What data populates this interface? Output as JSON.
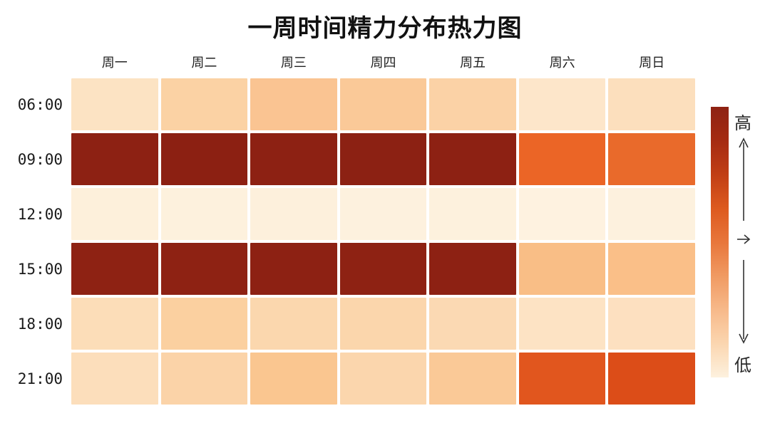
{
  "chart": {
    "title": "一周时间精力分布热力图"
  },
  "legend": {
    "high_label": "高",
    "low_label": "低",
    "arrow_icon": "vertical-range-arrows-icon"
  },
  "chart_data": {
    "type": "heatmap",
    "title": "一周时间精力分布热力图",
    "xlabel": "",
    "ylabel": "",
    "categories": [
      "周一",
      "周二",
      "周三",
      "周四",
      "周五",
      "周六",
      "周日"
    ],
    "rows": [
      "06:00",
      "09:00",
      "12:00",
      "15:00",
      "18:00",
      "21:00"
    ],
    "values": [
      [
        25,
        35,
        45,
        42,
        35,
        18,
        28
      ],
      [
        95,
        95,
        95,
        95,
        95,
        72,
        73
      ],
      [
        5,
        5,
        5,
        5,
        5,
        4,
        5
      ],
      [
        95,
        95,
        95,
        95,
        95,
        48,
        47
      ],
      [
        28,
        40,
        33,
        34,
        31,
        20,
        24
      ],
      [
        26,
        33,
        44,
        32,
        40,
        80,
        83
      ]
    ],
    "value_scale": [
      0,
      100
    ],
    "cell_colors": [
      [
        "#FCE3C3",
        "#FBD2A4",
        "#FAC492",
        "#FAC998",
        "#FBD2A6",
        "#FDE6CA",
        "#FCDFBD"
      ],
      [
        "#8D2113",
        "#8C2012",
        "#8D2113",
        "#8C2113",
        "#8D2113",
        "#EB6526",
        "#E96A2B"
      ],
      [
        "#FDF0DB",
        "#FDF1DD",
        "#FDF0DC",
        "#FDF1DE",
        "#FDF1DD",
        "#FEF2E0",
        "#FDF1DE"
      ],
      [
        "#8E2213",
        "#8E2213",
        "#8D2113",
        "#8E2213",
        "#8D2113",
        "#F9BE86",
        "#FABF88"
      ],
      [
        "#FCDDB8",
        "#FBD0A0",
        "#FBD7AE",
        "#FBD6AC",
        "#FBD9B3",
        "#FDE3C4",
        "#FDE0C0"
      ],
      [
        "#FCDEBB",
        "#FBD3A8",
        "#FAC690",
        "#FBD6AD",
        "#FAC997",
        "#E1561E",
        "#DC4D18"
      ]
    ],
    "colorbar": {
      "orientation": "vertical",
      "high_label": "高",
      "low_label": "低",
      "stops_top_to_bottom": [
        "#8E2213",
        "#A52B12",
        "#C13E15",
        "#DD5A1F",
        "#E8763B",
        "#F09A62",
        "#F7B98A",
        "#FBD6B0",
        "#FDF1DE"
      ]
    },
    "grid": "white 4px gaps between cells",
    "legend_position": "right",
    "background_color": "#FFFFFF"
  }
}
